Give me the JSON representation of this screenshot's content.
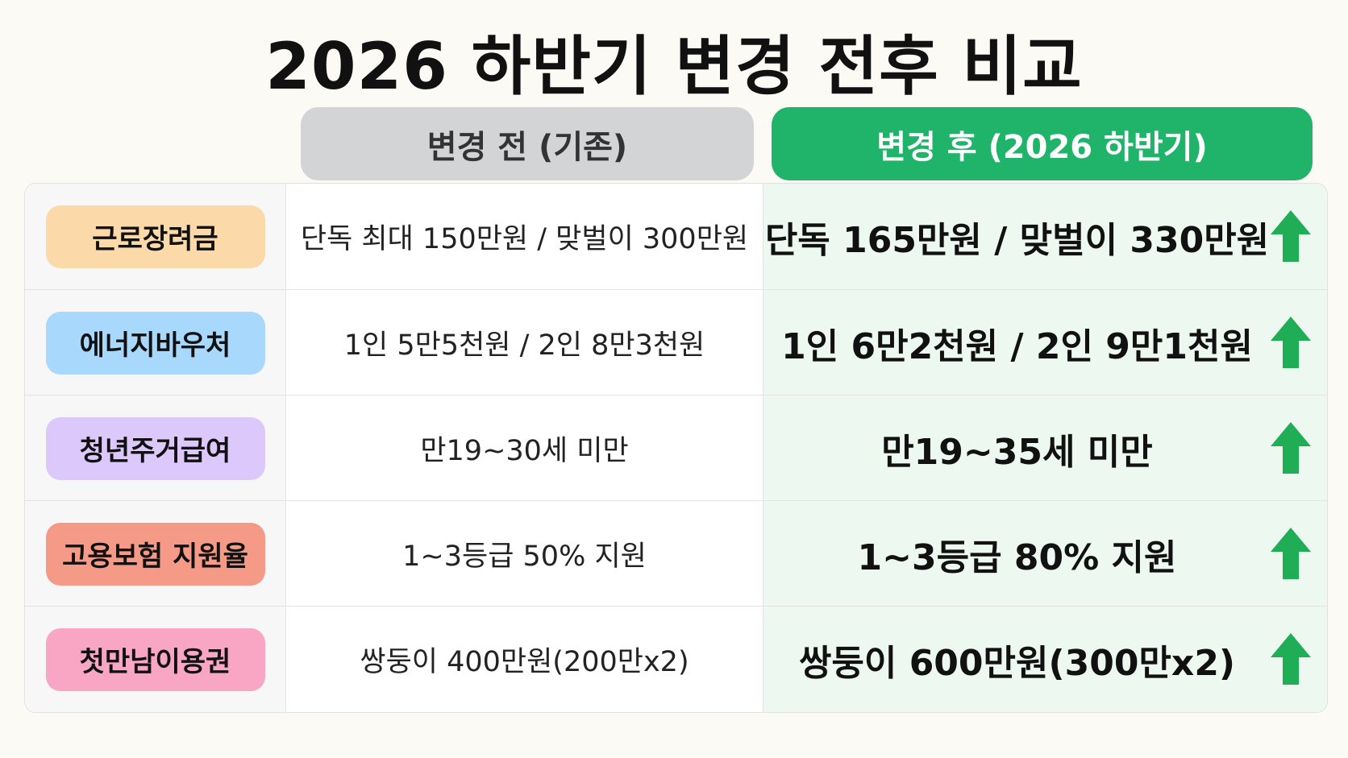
{
  "title": "2026 하반기 변경 전후 비교",
  "headers": {
    "before": "변경 전 (기존)",
    "after": "변경 후 (2026 하반기)"
  },
  "rows": [
    {
      "label": "근로장려금",
      "before": "단독 최대 150만원 / 맞벌이 300만원",
      "after": "단독 165만원 / 맞벌이 330만원"
    },
    {
      "label": "에너지바우처",
      "before": "1인 5만5천원 / 2인 8만3천원",
      "after": "1인 6만2천원 / 2인 9만1천원"
    },
    {
      "label": "청년주거급여",
      "before": "만19~30세 미만",
      "after": "만19~35세 미만"
    },
    {
      "label": "고용보험 지원율",
      "before": "1~3등급 50% 지원",
      "after": "1~3등급 80% 지원"
    },
    {
      "label": "첫만남이용권",
      "before": "쌍둥이 400만원(200만x2)",
      "after": "쌍둥이 600만원(300만x2)"
    }
  ]
}
